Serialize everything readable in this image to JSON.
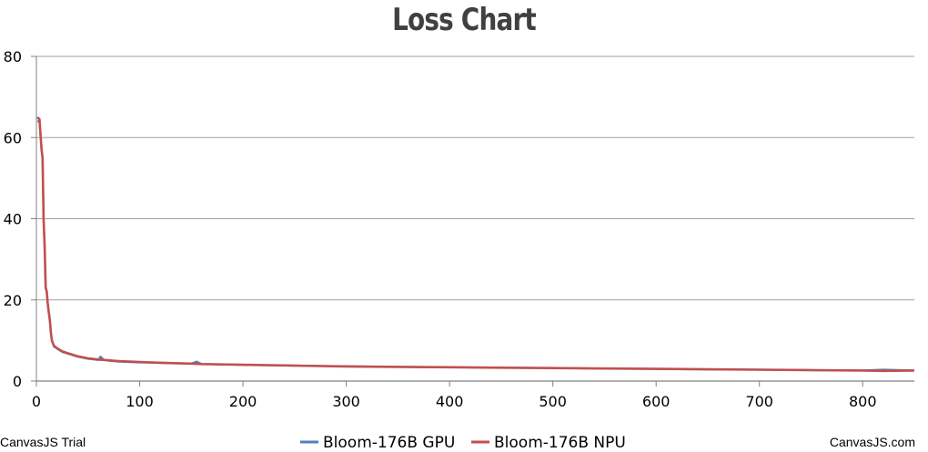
{
  "page": {
    "credit_left": "CanvasJS Trial",
    "credit_right": "CanvasJS.com"
  },
  "chart_data": {
    "type": "line",
    "title": "Loss Chart",
    "xlabel": "",
    "ylabel": "",
    "xlim": [
      0,
      850
    ],
    "ylim": [
      0,
      80
    ],
    "x_ticks": [
      0,
      100,
      200,
      300,
      400,
      500,
      600,
      700,
      800
    ],
    "y_ticks": [
      0,
      20,
      40,
      60,
      80
    ],
    "grid": "horizontal",
    "legend": "bottom-center",
    "series": [
      {
        "name": "Bloom-176B GPU",
        "color": "#4f81bc",
        "x": [
          1,
          3,
          5,
          6,
          7,
          8,
          9,
          10,
          11,
          12,
          13,
          14,
          15,
          17,
          20,
          25,
          30,
          40,
          50,
          60,
          62,
          65,
          70,
          80,
          100,
          120,
          150,
          155,
          160,
          200,
          250,
          300,
          350,
          400,
          450,
          500,
          550,
          600,
          650,
          700,
          750,
          800,
          820,
          850
        ],
        "y": [
          64,
          64,
          57,
          55,
          40,
          33,
          23,
          22,
          19,
          17,
          15,
          12,
          10,
          8.5,
          8,
          7.2,
          6.8,
          6.0,
          5.5,
          5.2,
          6.0,
          5.3,
          5.0,
          4.8,
          4.6,
          4.5,
          4.3,
          4.8,
          4.2,
          4.0,
          3.8,
          3.6,
          3.5,
          3.4,
          3.3,
          3.2,
          3.1,
          3.0,
          2.9,
          2.8,
          2.7,
          2.6,
          2.8,
          2.6
        ]
      },
      {
        "name": "Bloom-176B NPU",
        "color": "#c0504e",
        "x": [
          1,
          3,
          5,
          6,
          7,
          8,
          9,
          10,
          11,
          12,
          13,
          14,
          15,
          17,
          20,
          25,
          30,
          40,
          50,
          60,
          70,
          80,
          100,
          120,
          150,
          160,
          200,
          250,
          300,
          350,
          400,
          450,
          500,
          550,
          600,
          650,
          700,
          750,
          800,
          820,
          850
        ],
        "y": [
          65,
          64.5,
          57,
          55,
          40,
          33,
          23,
          22,
          19,
          17,
          15,
          12,
          10,
          8.7,
          8.1,
          7.3,
          6.9,
          6.1,
          5.6,
          5.3,
          5.1,
          4.9,
          4.7,
          4.5,
          4.3,
          4.2,
          4.0,
          3.8,
          3.6,
          3.5,
          3.4,
          3.3,
          3.2,
          3.1,
          3.0,
          2.9,
          2.8,
          2.7,
          2.6,
          2.5,
          2.6
        ]
      }
    ]
  }
}
